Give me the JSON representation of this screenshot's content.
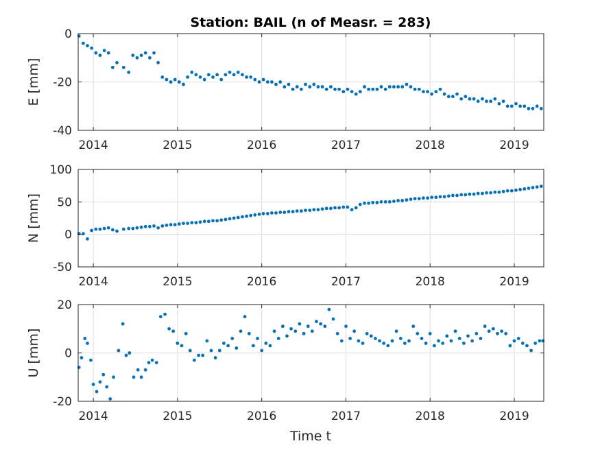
{
  "figure": {
    "background": "#ffffff",
    "marker_color": "#0072BD"
  },
  "chart_data": [
    {
      "type": "scatter",
      "key": "E",
      "title": "Station: BAIL (n of Measr. = 283)",
      "xlabel": "",
      "ylabel": "E [mm]",
      "xlim": [
        2013.82,
        2019.35
      ],
      "ylim": [
        -40,
        0
      ],
      "xticks": [
        2014,
        2015,
        2016,
        2017,
        2018,
        2019
      ],
      "yticks": [
        -40,
        -20,
        0
      ],
      "grid": true,
      "series": [
        {
          "name": "E",
          "x": [
            2013.83,
            2013.88,
            2013.93,
            2013.98,
            2014.03,
            2014.08,
            2014.13,
            2014.18,
            2014.23,
            2014.28,
            2014.36,
            2014.42,
            2014.47,
            2014.52,
            2014.57,
            2014.62,
            2014.67,
            2014.72,
            2014.77,
            2014.82,
            2014.87,
            2014.92,
            2014.97,
            2015.02,
            2015.07,
            2015.12,
            2015.17,
            2015.22,
            2015.27,
            2015.32,
            2015.37,
            2015.42,
            2015.47,
            2015.52,
            2015.57,
            2015.62,
            2015.67,
            2015.72,
            2015.77,
            2015.82,
            2015.87,
            2015.92,
            2015.97,
            2016.02,
            2016.07,
            2016.12,
            2016.17,
            2016.22,
            2016.27,
            2016.32,
            2016.37,
            2016.42,
            2016.47,
            2016.52,
            2016.57,
            2016.62,
            2016.67,
            2016.72,
            2016.77,
            2016.82,
            2016.87,
            2016.92,
            2016.97,
            2017.02,
            2017.07,
            2017.12,
            2017.17,
            2017.22,
            2017.27,
            2017.32,
            2017.37,
            2017.42,
            2017.47,
            2017.52,
            2017.57,
            2017.62,
            2017.67,
            2017.72,
            2017.77,
            2017.82,
            2017.87,
            2017.92,
            2017.97,
            2018.02,
            2018.07,
            2018.12,
            2018.17,
            2018.22,
            2018.27,
            2018.32,
            2018.37,
            2018.42,
            2018.47,
            2018.52,
            2018.57,
            2018.62,
            2018.67,
            2018.72,
            2018.77,
            2018.82,
            2018.87,
            2018.92,
            2018.97,
            2019.02,
            2019.07,
            2019.12,
            2019.17,
            2019.22,
            2019.27,
            2019.32
          ],
          "y": [
            -1,
            -4,
            -5,
            -6,
            -8,
            -9,
            -7,
            -8,
            -14,
            -12,
            -14,
            -16,
            -9,
            -10,
            -9,
            -8,
            -10,
            -8,
            -12,
            -18,
            -19,
            -20,
            -19,
            -20,
            -21,
            -18,
            -16,
            -17,
            -18,
            -19,
            -17,
            -18,
            -17,
            -19,
            -17,
            -16,
            -17,
            -16,
            -17,
            -18,
            -18,
            -19,
            -20,
            -19,
            -20,
            -20,
            -21,
            -20,
            -22,
            -21,
            -23,
            -22,
            -23,
            -21,
            -22,
            -21,
            -22,
            -22,
            -23,
            -22,
            -23,
            -23,
            -24,
            -23,
            -24,
            -25,
            -24,
            -22,
            -23,
            -23,
            -23,
            -22,
            -23,
            -22,
            -22,
            -22,
            -22,
            -21,
            -22,
            -23,
            -23,
            -24,
            -24,
            -25,
            -24,
            -23,
            -25,
            -26,
            -26,
            -25,
            -27,
            -26,
            -27,
            -27,
            -28,
            -27,
            -28,
            -28,
            -27,
            -29,
            -28,
            -30,
            -30,
            -29,
            -30,
            -30,
            -31,
            -31,
            -30,
            -31
          ]
        }
      ]
    },
    {
      "type": "scatter",
      "key": "N",
      "title": "",
      "xlabel": "",
      "ylabel": "N [mm]",
      "xlim": [
        2013.82,
        2019.35
      ],
      "ylim": [
        -50,
        100
      ],
      "xticks": [
        2014,
        2015,
        2016,
        2017,
        2018,
        2019
      ],
      "yticks": [
        -50,
        0,
        50,
        100
      ],
      "grid": true,
      "series": [
        {
          "name": "N",
          "x": [
            2013.83,
            2013.88,
            2013.93,
            2013.98,
            2014.03,
            2014.08,
            2014.13,
            2014.18,
            2014.23,
            2014.28,
            2014.36,
            2014.42,
            2014.47,
            2014.52,
            2014.57,
            2014.62,
            2014.67,
            2014.72,
            2014.77,
            2014.82,
            2014.87,
            2014.92,
            2014.97,
            2015.02,
            2015.07,
            2015.12,
            2015.17,
            2015.22,
            2015.27,
            2015.32,
            2015.37,
            2015.42,
            2015.47,
            2015.52,
            2015.57,
            2015.62,
            2015.67,
            2015.72,
            2015.77,
            2015.82,
            2015.87,
            2015.92,
            2015.97,
            2016.02,
            2016.07,
            2016.12,
            2016.17,
            2016.22,
            2016.27,
            2016.32,
            2016.37,
            2016.42,
            2016.47,
            2016.52,
            2016.57,
            2016.62,
            2016.67,
            2016.72,
            2016.77,
            2016.82,
            2016.87,
            2016.92,
            2016.97,
            2017.02,
            2017.07,
            2017.12,
            2017.17,
            2017.22,
            2017.27,
            2017.32,
            2017.37,
            2017.42,
            2017.47,
            2017.52,
            2017.57,
            2017.62,
            2017.67,
            2017.72,
            2017.77,
            2017.82,
            2017.87,
            2017.92,
            2017.97,
            2018.02,
            2018.07,
            2018.12,
            2018.17,
            2018.22,
            2018.27,
            2018.32,
            2018.37,
            2018.42,
            2018.47,
            2018.52,
            2018.57,
            2018.62,
            2018.67,
            2018.72,
            2018.77,
            2018.82,
            2018.87,
            2018.92,
            2018.97,
            2019.02,
            2019.07,
            2019.12,
            2019.17,
            2019.22,
            2019.27,
            2019.32
          ],
          "y": [
            1,
            1,
            -7,
            6,
            8,
            8,
            9,
            10,
            7,
            5,
            8,
            9,
            9,
            10,
            11,
            12,
            12,
            13,
            10,
            13,
            14,
            15,
            15,
            16,
            17,
            17,
            18,
            18,
            19,
            20,
            20,
            21,
            21,
            22,
            23,
            24,
            25,
            26,
            27,
            28,
            29,
            30,
            31,
            32,
            32,
            33,
            33,
            34,
            34,
            35,
            35,
            36,
            36,
            37,
            37,
            38,
            38,
            39,
            40,
            40,
            41,
            41,
            42,
            42,
            38,
            41,
            46,
            48,
            48,
            49,
            49,
            50,
            50,
            50,
            51,
            52,
            52,
            53,
            54,
            55,
            55,
            56,
            56,
            57,
            57,
            58,
            58,
            59,
            60,
            60,
            61,
            61,
            62,
            62,
            63,
            63,
            64,
            64,
            65,
            65,
            66,
            67,
            67,
            68,
            69,
            70,
            71,
            72,
            73,
            74
          ]
        }
      ]
    },
    {
      "type": "scatter",
      "key": "U",
      "title": "",
      "xlabel": "Time t",
      "ylabel": "U [mm]",
      "xlim": [
        2013.82,
        2019.35
      ],
      "ylim": [
        -20,
        20
      ],
      "xticks": [
        2014,
        2015,
        2016,
        2017,
        2018,
        2019
      ],
      "yticks": [
        -20,
        0,
        20
      ],
      "grid": true,
      "series": [
        {
          "name": "U",
          "x": [
            2013.83,
            2013.86,
            2013.9,
            2013.93,
            2013.97,
            2014.0,
            2014.04,
            2014.08,
            2014.12,
            2014.16,
            2014.2,
            2014.24,
            2014.3,
            2014.35,
            2014.39,
            2014.43,
            2014.48,
            2014.53,
            2014.57,
            2014.62,
            2014.66,
            2014.7,
            2014.75,
            2014.8,
            2014.85,
            2014.9,
            2014.95,
            2015.0,
            2015.05,
            2015.1,
            2015.15,
            2015.2,
            2015.25,
            2015.3,
            2015.35,
            2015.4,
            2015.45,
            2015.5,
            2015.55,
            2015.6,
            2015.65,
            2015.7,
            2015.75,
            2015.8,
            2015.85,
            2015.9,
            2015.95,
            2016.0,
            2016.05,
            2016.1,
            2016.15,
            2016.2,
            2016.25,
            2016.3,
            2016.35,
            2016.4,
            2016.45,
            2016.5,
            2016.55,
            2016.6,
            2016.65,
            2016.7,
            2016.75,
            2016.8,
            2016.85,
            2016.9,
            2016.95,
            2017.0,
            2017.05,
            2017.1,
            2017.15,
            2017.2,
            2017.25,
            2017.3,
            2017.35,
            2017.4,
            2017.45,
            2017.5,
            2017.55,
            2017.6,
            2017.65,
            2017.7,
            2017.75,
            2017.8,
            2017.85,
            2017.9,
            2017.95,
            2018.0,
            2018.05,
            2018.1,
            2018.15,
            2018.2,
            2018.25,
            2018.3,
            2018.35,
            2018.4,
            2018.45,
            2018.5,
            2018.55,
            2018.6,
            2018.65,
            2018.7,
            2018.75,
            2018.8,
            2018.85,
            2018.9,
            2018.95,
            2019.0,
            2019.05,
            2019.1,
            2019.15,
            2019.2,
            2019.25,
            2019.3,
            2019.34
          ],
          "y": [
            -6,
            -2,
            6,
            4,
            -3,
            -13,
            -16,
            -12,
            -9,
            -14,
            -19,
            -10,
            1,
            12,
            -1,
            0,
            -10,
            -7,
            -10,
            -7,
            -4,
            -3,
            -4,
            15,
            16,
            10,
            9,
            4,
            3,
            8,
            1,
            -3,
            -1,
            -1,
            5,
            1,
            -2,
            1,
            4,
            3,
            6,
            2,
            9,
            15,
            8,
            3,
            6,
            1,
            4,
            3,
            9,
            6,
            11,
            7,
            10,
            9,
            12,
            8,
            11,
            9,
            13,
            12,
            11,
            18,
            14,
            8,
            5,
            11,
            6,
            9,
            5,
            4,
            8,
            7,
            6,
            5,
            4,
            3,
            5,
            9,
            6,
            4,
            5,
            11,
            8,
            6,
            4,
            8,
            3,
            5,
            4,
            7,
            5,
            9,
            6,
            4,
            7,
            5,
            8,
            6,
            11,
            9,
            10,
            8,
            9,
            8,
            3,
            5,
            6,
            4,
            3,
            1,
            4,
            5,
            5
          ]
        }
      ]
    }
  ]
}
